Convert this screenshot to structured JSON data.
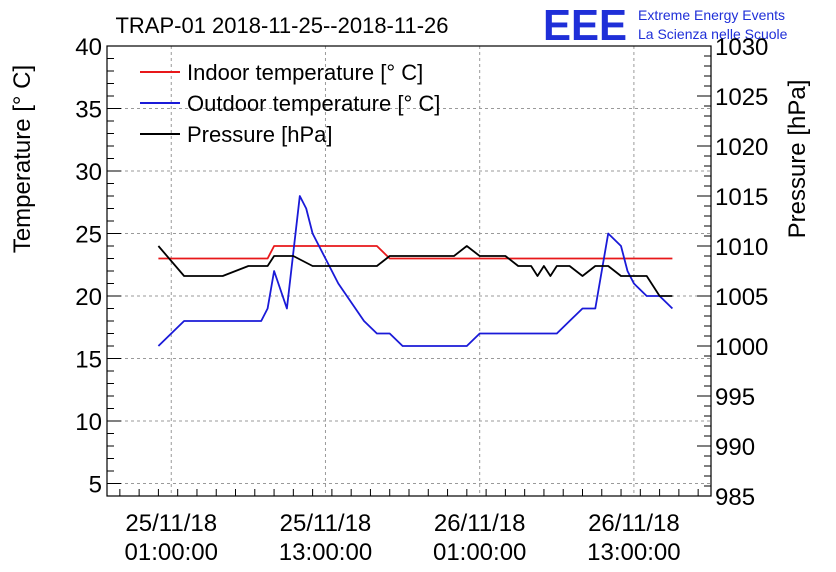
{
  "logo": {
    "mark": "EEE",
    "line1": "Extreme Energy Events",
    "line2": "La Scienza nelle Scuole"
  },
  "colors": {
    "indoor": "#e8181a",
    "outdoor": "#1a1ad8",
    "pressure": "#000000",
    "logo": "#1f2fd8"
  },
  "chart_data": {
    "type": "line",
    "title": "TRAP-01 2018-11-25--2018-11-26",
    "ylabel": "Temperature [° C]",
    "y2label": "Pressure [hPa]",
    "ylim": [
      4,
      40
    ],
    "y2lim": [
      985,
      1030
    ],
    "xlim": [
      -4,
      43
    ],
    "x_unit": "hours since 25/11/18 00:00:00",
    "yticks": [
      5,
      10,
      15,
      20,
      25,
      30,
      35,
      40
    ],
    "y2ticks": [
      985,
      990,
      995,
      1000,
      1005,
      1010,
      1015,
      1020,
      1025,
      1030
    ],
    "xticks": [
      {
        "x": 1,
        "date": "25/11/18",
        "time": "01:00:00"
      },
      {
        "x": 13,
        "date": "25/11/18",
        "time": "13:00:00"
      },
      {
        "x": 25,
        "date": "26/11/18",
        "time": "01:00:00"
      },
      {
        "x": 37,
        "date": "26/11/18",
        "time": "13:00:00"
      }
    ],
    "grid": true,
    "legend_position": "top-left",
    "series": [
      {
        "name": "Indoor temperature [° C]",
        "axis": "left",
        "x": [
          0,
          8.5,
          9,
          17,
          18,
          40
        ],
        "values": [
          23,
          23,
          24,
          24,
          23,
          23
        ]
      },
      {
        "name": "Outdoor temperature [° C]",
        "axis": "left",
        "x": [
          0,
          2,
          8,
          8.5,
          9,
          10,
          11,
          11.5,
          12,
          14,
          16,
          17,
          18,
          19,
          20,
          24,
          25,
          31,
          32,
          33,
          34,
          35,
          36,
          36.5,
          37,
          38,
          39,
          40
        ],
        "values": [
          16,
          18,
          18,
          19,
          22,
          19,
          28,
          27,
          25,
          21,
          18,
          17,
          17,
          16,
          16,
          16,
          17,
          17,
          18,
          19,
          19,
          25,
          24,
          22,
          21,
          20,
          20,
          19
        ]
      },
      {
        "name": "Pressure [hPa]",
        "axis": "right",
        "x": [
          0,
          2,
          5,
          7,
          8.5,
          9,
          10.5,
          12,
          14,
          17,
          18,
          20,
          23,
          24,
          25,
          27,
          28,
          29,
          29.5,
          30,
          30.5,
          31,
          32,
          33,
          34,
          35,
          36,
          38,
          39,
          40
        ],
        "values": [
          1010,
          1007,
          1007,
          1008,
          1008,
          1009,
          1009,
          1008,
          1008,
          1008,
          1009,
          1009,
          1009,
          1010,
          1009,
          1009,
          1008,
          1008,
          1007,
          1008,
          1007,
          1008,
          1008,
          1007,
          1008,
          1008,
          1007,
          1007,
          1005,
          1005
        ]
      }
    ]
  }
}
